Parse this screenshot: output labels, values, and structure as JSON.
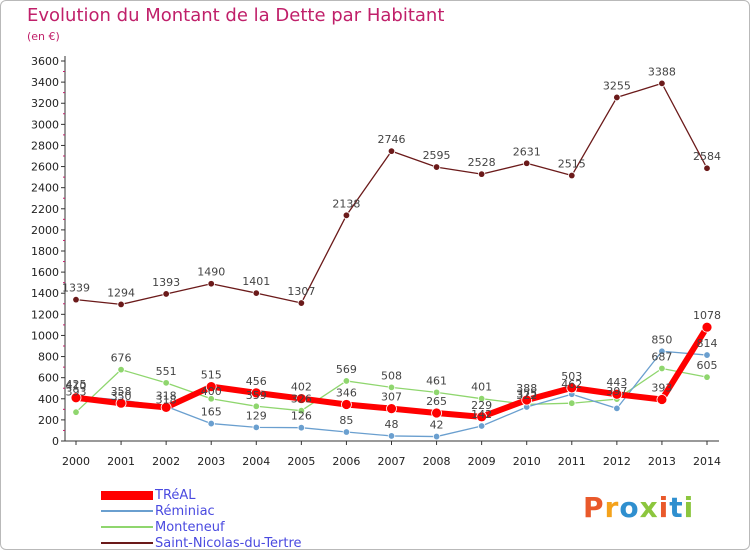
{
  "title": "Evolution du Montant de la Dette par Habitant",
  "unit": "(en €)",
  "logo": {
    "text": "Proxiti",
    "colors": [
      "#e9592b",
      "#f4a21c",
      "#2f8fcf",
      "#8cc63e",
      "#e9592b",
      "#2f8fcf",
      "#8cc63e"
    ]
  },
  "chart_data": {
    "type": "line",
    "x": [
      "2000",
      "2001",
      "2002",
      "2003",
      "2004",
      "2005",
      "2006",
      "2007",
      "2008",
      "2009",
      "2010",
      "2011",
      "2012",
      "2013",
      "2014"
    ],
    "ylim": [
      0,
      3600
    ],
    "yticks": [
      0,
      200,
      400,
      600,
      800,
      1000,
      1200,
      1400,
      1600,
      1800,
      2000,
      2200,
      2400,
      2600,
      2800,
      3000,
      3200,
      3400,
      3600
    ],
    "grid": false,
    "legend_position": "bottom-left",
    "series": [
      {
        "name": "Saint-Nicolas-du-Tertre",
        "color": "#6b1a1a",
        "width": 1.3,
        "values": [
          1339,
          1294,
          1393,
          1490,
          1401,
          1307,
          2138,
          2746,
          2595,
          2528,
          2631,
          2515,
          3255,
          3388,
          2584
        ]
      },
      {
        "name": "Monteneuf",
        "color": "#8fd66e",
        "width": 1.3,
        "values": [
          273,
          676,
          551,
          400,
          329,
          287,
          569,
          508,
          461,
          401,
          347,
          358,
          397,
          687,
          605
        ]
      },
      {
        "name": "Réminiac",
        "color": "#6a9fcf",
        "width": 1.3,
        "values": [
          425,
          388,
          328,
          165,
          129,
          126,
          85,
          48,
          42,
          142,
          322,
          443,
          309,
          850,
          814
        ]
      },
      {
        "name": "TRéAL",
        "color": "#ff0000",
        "width": 6,
        "values": [
          410,
          358,
          318,
          515,
          456,
          402,
          346,
          307,
          265,
          229,
          388,
          503,
          443,
          393,
          1078
        ]
      }
    ],
    "labels": [
      {
        "series": 0,
        "values": [
          "1339",
          "1294",
          "1393",
          "1490",
          "1401",
          "1307",
          "2138",
          "2746",
          "2595",
          "2528",
          "2631",
          "2515",
          "3255",
          "3388",
          "2584"
        ]
      },
      {
        "series": 1,
        "values": [
          "",
          "676",
          "551",
          "",
          "",
          "",
          "569",
          "508",
          "461",
          "401",
          "",
          "",
          "",
          "687",
          "605"
        ]
      },
      {
        "series": 2,
        "values": [
          "425",
          "",
          "",
          "165",
          "129",
          "126",
          "85",
          "48",
          "42",
          "142",
          "322",
          "",
          "",
          "850",
          "814"
        ]
      },
      {
        "series": 3,
        "values": [
          "410",
          "358",
          "318",
          "515",
          "456",
          "402",
          "346",
          "307",
          "265",
          "229",
          "388",
          "503",
          "443",
          "393",
          "1078"
        ]
      },
      {
        "series": 1,
        "values": [
          "",
          "",
          "",
          "",
          "",
          "",
          "",
          "",
          "",
          "",
          "",
          "",
          "",
          "",
          ""
        ]
      }
    ]
  },
  "extra_labels": [
    {
      "x": "2000",
      "text": "393"
    },
    {
      "x": "2001",
      "text": "350"
    },
    {
      "x": "2002",
      "text": "318"
    },
    {
      "x": "2003",
      "text": "400"
    },
    {
      "x": "2004",
      "text": "359"
    },
    {
      "x": "2005",
      "text": "326"
    },
    {
      "x": "2006",
      "text": ""
    },
    {
      "x": "2008",
      "text": ""
    },
    {
      "x": "2010",
      "text": "375"
    },
    {
      "x": "2011",
      "text": "462"
    },
    {
      "x": "2012",
      "text": "397"
    }
  ]
}
